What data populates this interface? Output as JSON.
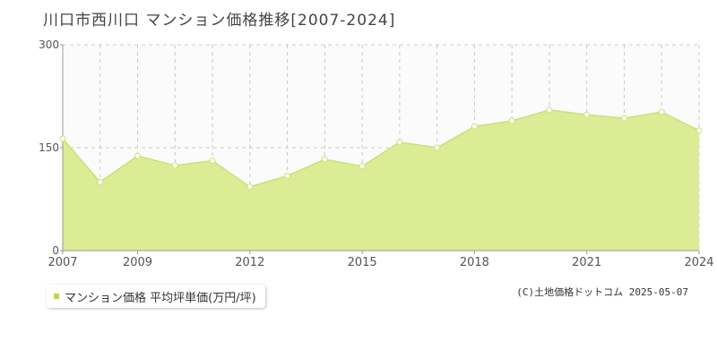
{
  "title": "川口市西川口 マンション価格推移[2007-2024]",
  "legend": {
    "label": "マンション価格 平均坪単価(万円/坪)"
  },
  "credit": "(C)土地価格ドットコム 2025-05-07",
  "colors": {
    "line": "#c7e27a",
    "fill": "#dbec95",
    "marker_fill": "#ffffff",
    "marker_stroke": "#c7e27a",
    "grid": "#c8c8c8"
  },
  "chart_data": {
    "type": "area",
    "x": [
      2007,
      2008,
      2009,
      2010,
      2011,
      2012,
      2013,
      2014,
      2015,
      2016,
      2017,
      2018,
      2019,
      2020,
      2021,
      2022,
      2023,
      2024
    ],
    "series": [
      {
        "name": "マンション価格 平均坪単価(万円/坪)",
        "values": [
          163,
          100,
          138,
          124,
          131,
          93,
          109,
          133,
          123,
          158,
          150,
          181,
          189,
          205,
          198,
          193,
          202,
          175
        ]
      }
    ],
    "xlim": [
      2007,
      2024
    ],
    "ylim": [
      0,
      300
    ],
    "xticks": [
      2007,
      2009,
      2012,
      2015,
      2018,
      2021,
      2024
    ],
    "yticks": [
      0,
      150,
      300
    ],
    "grid": true
  }
}
